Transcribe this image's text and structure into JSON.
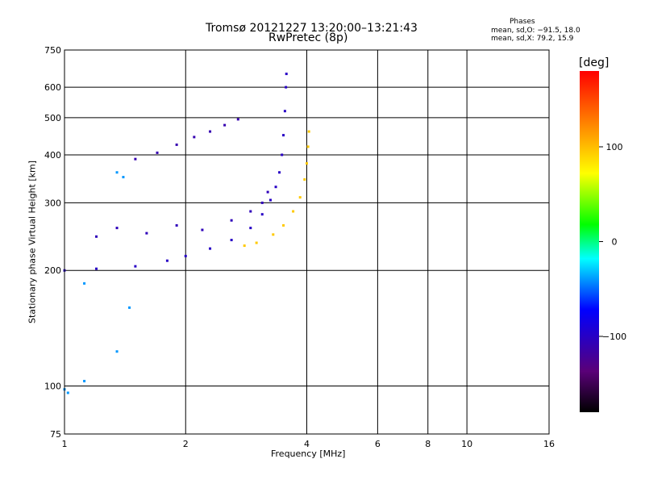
{
  "header": {
    "title": "Tromsø 20121227 13:20:00–13:21:43",
    "subtitle": "RwPretec (8p)",
    "phases_heading": "Phases",
    "phases_o": "mean, sd,O: −91.5, 18.0",
    "phases_x": "mean, sd,X: 79.2, 15.9"
  },
  "chart_data": {
    "type": "scatter",
    "xlabel": "Frequency [MHz]",
    "ylabel": "Stationary phase Virtual Height [km]",
    "x_scale": "log",
    "y_scale": "log",
    "xlim": [
      1,
      16
    ],
    "ylim": [
      75,
      750
    ],
    "x_ticks": [
      1,
      2,
      4,
      6,
      8,
      10,
      16
    ],
    "x_tick_labels": [
      "1",
      "2",
      "4",
      "6",
      "8",
      "10",
      "16"
    ],
    "y_ticks": [
      75,
      100,
      200,
      300,
      400,
      500,
      600,
      750
    ],
    "y_tick_labels": [
      "75",
      "100",
      "200",
      "300",
      "400",
      "500",
      "600",
      "750"
    ],
    "grid": true,
    "colorbar": {
      "unit": "[deg]",
      "range": [
        -180,
        180
      ],
      "ticks": [
        100,
        0,
        -100
      ],
      "tick_labels": [
        "100",
        "0",
        "−100"
      ],
      "colors": [
        "#000000",
        "#5a0078",
        "#0000ff",
        "#00ffff",
        "#00ff00",
        "#ffff00",
        "#ff8000",
        "#ff0000"
      ]
    },
    "series": [
      {
        "color_phase": -100,
        "trace": "o-mode lower",
        "points": [
          [
            1.0,
            200
          ],
          [
            1.2,
            202
          ],
          [
            1.5,
            205
          ],
          [
            1.8,
            212
          ],
          [
            2.0,
            218
          ],
          [
            2.3,
            228
          ],
          [
            2.6,
            240
          ],
          [
            2.9,
            258
          ],
          [
            3.1,
            280
          ],
          [
            3.25,
            305
          ],
          [
            3.35,
            330
          ],
          [
            3.42,
            360
          ],
          [
            3.47,
            400
          ],
          [
            3.5,
            450
          ],
          [
            3.53,
            520
          ],
          [
            3.55,
            600
          ],
          [
            3.56,
            650
          ]
        ]
      },
      {
        "color_phase": 95,
        "trace": "x-mode lower",
        "points": [
          [
            2.8,
            232
          ],
          [
            3.0,
            236
          ],
          [
            3.3,
            248
          ],
          [
            3.5,
            262
          ],
          [
            3.7,
            285
          ],
          [
            3.85,
            310
          ],
          [
            3.95,
            345
          ],
          [
            4.0,
            380
          ],
          [
            4.03,
            420
          ],
          [
            4.05,
            460
          ]
        ]
      },
      {
        "color_phase": -110,
        "trace": "o-mode upper",
        "points": [
          [
            1.5,
            390
          ],
          [
            1.7,
            405
          ],
          [
            1.9,
            425
          ],
          [
            2.1,
            445
          ],
          [
            2.3,
            460
          ],
          [
            2.5,
            478
          ],
          [
            2.7,
            495
          ]
        ]
      },
      {
        "color_phase": -105,
        "trace": "o-mode spread",
        "points": [
          [
            1.2,
            245
          ],
          [
            1.35,
            258
          ],
          [
            1.6,
            250
          ],
          [
            1.9,
            262
          ],
          [
            2.2,
            255
          ],
          [
            2.6,
            270
          ],
          [
            2.9,
            285
          ],
          [
            3.1,
            300
          ],
          [
            3.2,
            320
          ]
        ]
      },
      {
        "color_phase": -40,
        "trace": "scattered",
        "points": [
          [
            1.35,
            360
          ],
          [
            1.4,
            350
          ],
          [
            1.12,
            185
          ],
          [
            1.0,
            98
          ],
          [
            1.02,
            96
          ],
          [
            1.12,
            103
          ],
          [
            1.45,
            160
          ],
          [
            1.35,
            123
          ]
        ]
      }
    ]
  }
}
